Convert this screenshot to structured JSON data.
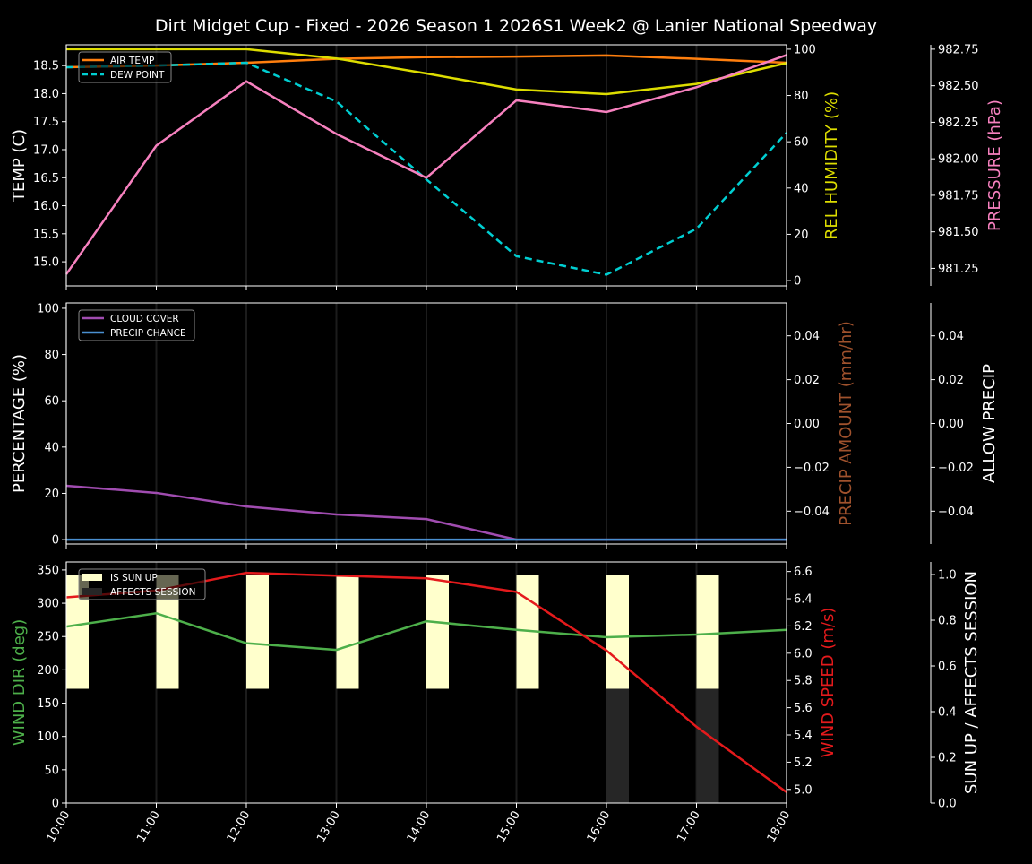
{
  "title": "Dirt Midget Cup - Fixed - 2026 Season 1 2026S1 Week2 @ Lanier National Speedway",
  "chart_data": [
    {
      "type": "line",
      "x": [
        "10:00",
        "11:00",
        "12:00",
        "13:00",
        "14:00",
        "15:00",
        "16:00",
        "17:00",
        "18:00"
      ],
      "ylabel": "TEMP (C)",
      "ylim": [
        14.57,
        18.87
      ],
      "yticks": [
        15.0,
        15.5,
        16.0,
        16.5,
        17.0,
        17.5,
        18.0,
        18.5
      ],
      "ylabel_right": "REL HUMIDITY (%)",
      "ylim_right": [
        -2.3,
        101.9
      ],
      "yticks_right": [
        0,
        20,
        40,
        60,
        80,
        100
      ],
      "ylabel_right2": "PRESSURE (hPa)",
      "ylim_right2": [
        981.13,
        982.78
      ],
      "yticks_right2": [
        "981.25",
        "981.50",
        "981.75",
        "982.00",
        "982.25",
        "982.50",
        "982.75"
      ],
      "legend": "top-left",
      "series": [
        {
          "name": "AIR TEMP",
          "axis": "left",
          "color": "#ff7f0e",
          "dash": false,
          "values": [
            18.47,
            18.5,
            18.55,
            18.62,
            18.65,
            18.66,
            18.68,
            18.62,
            18.55
          ]
        },
        {
          "name": "DEW POINT",
          "axis": "left",
          "color": "#00ced1",
          "dash": true,
          "values": [
            18.47,
            18.5,
            18.55,
            17.86,
            16.47,
            15.1,
            14.77,
            15.59,
            17.3
          ]
        },
        {
          "axis": "right",
          "color": "#dddd00",
          "dash": false,
          "values": [
            100,
            100,
            100,
            96,
            89.5,
            82.6,
            80.6,
            85,
            94
          ]
        },
        {
          "axis": "right2",
          "color": "#f781bf",
          "dash": false,
          "values": [
            981.21,
            982.09,
            982.53,
            982.17,
            981.87,
            982.4,
            982.32,
            982.49,
            982.71
          ]
        }
      ]
    },
    {
      "type": "line",
      "x": [
        "10:00",
        "11:00",
        "12:00",
        "13:00",
        "14:00",
        "15:00",
        "16:00",
        "17:00",
        "18:00"
      ],
      "ylabel": "PERCENTAGE (%)",
      "ylim": [
        -1.9,
        102.3
      ],
      "yticks": [
        0,
        20,
        40,
        60,
        80,
        100
      ],
      "ylabel_right": "PRECIP AMOUNT (mm/hr)",
      "ylim_right": [
        -0.055,
        0.055
      ],
      "yticks_right": [
        "−0.04",
        "−0.02",
        "0.00",
        "0.02",
        "0.04"
      ],
      "ylabel_right2": "ALLOW PRECIP",
      "ylim_right2": [
        -0.055,
        0.055
      ],
      "yticks_right2": [
        "−0.04",
        "−0.02",
        "0.00",
        "0.02",
        "0.04"
      ],
      "legend": "top-left",
      "series": [
        {
          "name": "CLOUD COVER",
          "axis": "left",
          "color": "#a04cb0",
          "values": [
            23.3,
            20.2,
            14.3,
            10.9,
            8.9,
            0,
            0,
            0,
            0
          ]
        },
        {
          "name": "PRECIP CHANCE",
          "axis": "left",
          "color": "#4a8fd0",
          "values": [
            0,
            0,
            0,
            0,
            0,
            0,
            0,
            0,
            0
          ]
        }
      ]
    },
    {
      "type": "line",
      "x": [
        "10:00",
        "11:00",
        "12:00",
        "13:00",
        "14:00",
        "15:00",
        "16:00",
        "17:00",
        "18:00"
      ],
      "ylabel": "WIND DIR (deg)",
      "ylim": [
        0,
        362
      ],
      "yticks": [
        0,
        50,
        100,
        150,
        200,
        250,
        300,
        350
      ],
      "ylabel_right": "WIND SPEED (m/s)",
      "ylim_right": [
        4.9,
        6.67
      ],
      "yticks_right": [
        "5.0",
        "5.2",
        "5.4",
        "5.6",
        "5.8",
        "6.0",
        "6.2",
        "6.4",
        "6.6"
      ],
      "ylabel_right2": "SUN UP / AFFECTS SESSION",
      "ylim_right2": [
        0,
        1.055
      ],
      "yticks_right2": [
        "0.0",
        "0.2",
        "0.4",
        "0.6",
        "0.8",
        "1.0"
      ],
      "legend": "top-left",
      "series": [
        {
          "axis": "left",
          "color": "#4daf4a",
          "values": [
            265,
            285,
            240,
            230,
            273,
            260,
            249,
            253,
            260
          ]
        },
        {
          "axis": "right",
          "color": "#e41a1c",
          "values": [
            6.41,
            6.46,
            6.59,
            6.57,
            6.55,
            6.45,
            6.02,
            5.46,
            4.98
          ]
        }
      ],
      "bars": [
        {
          "name": "IS SUN UP",
          "color": "#ffffcc",
          "values": [
            1,
            1,
            1,
            1,
            1,
            1,
            1,
            1,
            0
          ]
        },
        {
          "name": "AFFECTS SESSION",
          "color": "#262626",
          "values": [
            0,
            0,
            0,
            0,
            0,
            0,
            1,
            1,
            0
          ]
        }
      ]
    }
  ],
  "colors": {
    "rh": "#dddd00",
    "pressure": "#f781bf",
    "precip_amount": "#a0522d",
    "wind_dir": "#4daf4a",
    "wind_speed": "#e41a1c",
    "text": "#ffffff"
  }
}
